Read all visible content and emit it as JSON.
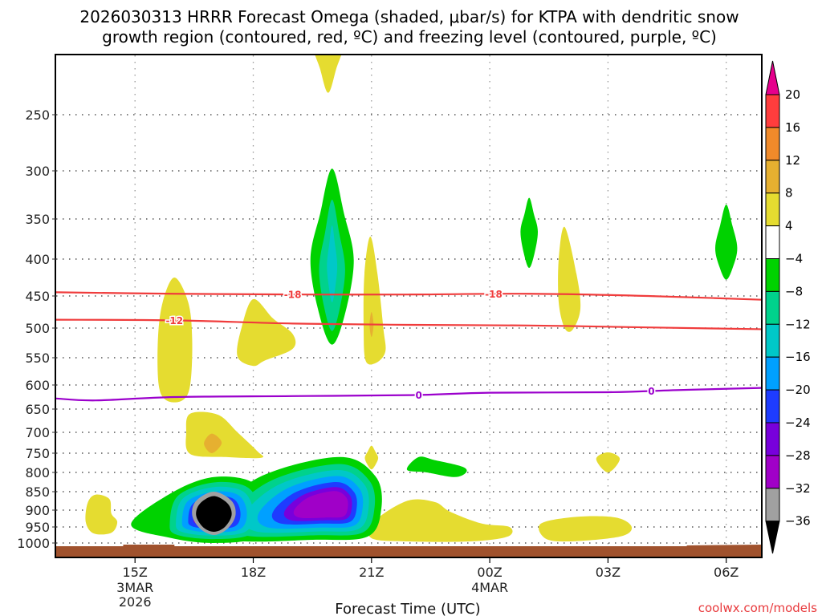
{
  "chart_data": {
    "type": "heatmap",
    "title": "2026030313 HRRR Forecast Omega (shaded, μbar/s) for KTPA with dendritic snow growth region (contoured, red, ºC) and freezing level (contoured, purple, ºC)",
    "title_lines": [
      "2026030313 HRRR Forecast Omega (shaded, μbar/s) for KTPA with dendritic snow",
      "growth region (contoured, red, ºC) and freezing level (contoured, purple, ºC)"
    ],
    "xlabel": "Forecast Time (UTC)",
    "ylabel": "",
    "x_unit": "hours since 2026-03-03 13Z",
    "xlim": [
      0,
      18.9
    ],
    "x_ticks": [
      {
        "hour": 2,
        "label": "15Z",
        "sub": [
          "3MAR",
          "2026"
        ]
      },
      {
        "hour": 5,
        "label": "18Z",
        "sub": []
      },
      {
        "hour": 8,
        "label": "21Z",
        "sub": []
      },
      {
        "hour": 11,
        "label": "00Z",
        "sub": [
          "4MAR"
        ]
      },
      {
        "hour": 14,
        "label": "03Z",
        "sub": []
      },
      {
        "hour": 17,
        "label": "06Z",
        "sub": []
      }
    ],
    "y_unit": "hPa",
    "ylim": [
      1025,
      200
    ],
    "y_ticks": [
      250,
      300,
      350,
      400,
      450,
      500,
      550,
      600,
      650,
      700,
      750,
      800,
      850,
      900,
      950,
      1000
    ],
    "grid": true,
    "colorbar": {
      "unit": "μbar/s",
      "levels": [
        20,
        16,
        12,
        8,
        4,
        -4,
        -8,
        -12,
        -16,
        -20,
        -24,
        -28,
        -32,
        -36
      ],
      "labels": [
        "20",
        "16",
        "12",
        "8",
        "4",
        "−4",
        "−8",
        "−12",
        "−16",
        "−20",
        "−24",
        "−28",
        "−32",
        "−36"
      ],
      "colors": [
        "#ff3d3d",
        "#f08a2a",
        "#e6b030",
        "#e5dc30",
        "#ffffff",
        "#00d200",
        "#00d28c",
        "#00c8c8",
        "#00a0ff",
        "#1e3cff",
        "#7800dc",
        "#a000c8",
        "#a0a0a0"
      ],
      "over_color": "#e6008c",
      "under_color": "#000000"
    },
    "omega_regions": [
      {
        "name": "yellow-top-2030",
        "value_range": [
          4,
          8
        ],
        "color": "#e5dc30",
        "center_hour": 6.85,
        "pressure_range": [
          200,
          235
        ]
      },
      {
        "name": "yellow-1600",
        "value_range": [
          4,
          8
        ],
        "color": "#e5dc30",
        "center_hour": 3.0,
        "pressure_range": [
          430,
          635
        ]
      },
      {
        "name": "yellow-1830",
        "value_range": [
          4,
          8
        ],
        "color": "#e5dc30",
        "center_hour": 5.0,
        "pressure_range": [
          455,
          565
        ]
      },
      {
        "name": "yellow-2100",
        "value_range": [
          4,
          8
        ],
        "color": "#e5dc30",
        "center_hour": 8.0,
        "pressure_range": [
          375,
          560
        ]
      },
      {
        "name": "yellow-0200",
        "value_range": [
          4,
          8
        ],
        "color": "#e5dc30",
        "center_hour": 13.0,
        "pressure_range": [
          360,
          505
        ]
      },
      {
        "name": "yellow-1630-700",
        "value_range": [
          4,
          12
        ],
        "color": "#e5dc30",
        "center_hour": 3.8,
        "pressure_range": [
          665,
          760
        ],
        "peak_range": [
          8,
          12
        ]
      },
      {
        "name": "yellow-2100-750",
        "value_range": [
          4,
          8
        ],
        "color": "#e5dc30",
        "center_hour": 8.0,
        "pressure_range": [
          730,
          790
        ]
      },
      {
        "name": "yellow-0300-760",
        "value_range": [
          4,
          8
        ],
        "color": "#e5dc30",
        "center_hour": 14.0,
        "pressure_range": [
          745,
          800
        ]
      },
      {
        "name": "yellow-1400-900",
        "value_range": [
          4,
          8
        ],
        "color": "#e5dc30",
        "center_hour": 1.1,
        "pressure_range": [
          855,
          970
        ]
      },
      {
        "name": "yellow-2300-950",
        "value_range": [
          4,
          8
        ],
        "color": "#e5dc30",
        "center_hour": 10.0,
        "pressure_range": [
          875,
          985
        ]
      },
      {
        "name": "yellow-0230-950",
        "value_range": [
          4,
          8
        ],
        "color": "#e5dc30",
        "center_hour": 13.9,
        "pressure_range": [
          920,
          990
        ]
      },
      {
        "name": "green-2000-upper",
        "value_range": [
          -16,
          -4
        ],
        "color": "#00d200",
        "center_hour": 7.0,
        "pressure_range": [
          300,
          525
        ],
        "peak_range": [
          -16,
          -12
        ]
      },
      {
        "name": "green-0100-350",
        "value_range": [
          -8,
          -4
        ],
        "color": "#00d200",
        "center_hour": 12.0,
        "pressure_range": [
          330,
          410
        ]
      },
      {
        "name": "green-0600-380",
        "value_range": [
          -8,
          -4
        ],
        "color": "#00d200",
        "center_hour": 17.0,
        "pressure_range": [
          340,
          425
        ]
      },
      {
        "name": "green-2230-780",
        "value_range": [
          -8,
          -4
        ],
        "color": "#00d200",
        "center_hour": 9.6,
        "pressure_range": [
          765,
          815
        ]
      },
      {
        "name": "low-level-max-1700",
        "value_range": [
          -40,
          -4
        ],
        "color": "#000000",
        "center_hour": 4.0,
        "pressure_range": [
          810,
          1000
        ],
        "peak_range": [
          -40,
          -36
        ]
      },
      {
        "name": "low-level-max-2000",
        "value_range": [
          -32,
          -4
        ],
        "color": "#a000c8",
        "center_hour": 7.0,
        "pressure_range": [
          770,
          1000
        ],
        "peak_range": [
          -32,
          -28
        ]
      }
    ],
    "contours": [
      {
        "name": "dgz-minus-18",
        "kind": "dendritic snow growth",
        "color": "#f03c3c",
        "level": -18,
        "label": "-18",
        "points_hour_hpa": [
          [
            0,
            445
          ],
          [
            3,
            447
          ],
          [
            6,
            448
          ],
          [
            9,
            448
          ],
          [
            12,
            447
          ],
          [
            15,
            450
          ],
          [
            18.9,
            458
          ]
        ],
        "label_hours": [
          6.0,
          11.1
        ]
      },
      {
        "name": "dgz-minus-12",
        "kind": "dendritic snow growth",
        "color": "#f03c3c",
        "level": -12,
        "label": "-12",
        "points_hour_hpa": [
          [
            0,
            487
          ],
          [
            3,
            488
          ],
          [
            6,
            493
          ],
          [
            9,
            495
          ],
          [
            12,
            496
          ],
          [
            15,
            499
          ],
          [
            18.9,
            503
          ]
        ],
        "label_hours": [
          3.0
        ]
      },
      {
        "name": "freezing-level-0",
        "kind": "freezing level",
        "color": "#9b00cc",
        "level": 0,
        "label": "0",
        "points_hour_hpa": [
          [
            0,
            628
          ],
          [
            1,
            632
          ],
          [
            3,
            625
          ],
          [
            6,
            623
          ],
          [
            9,
            621
          ],
          [
            11,
            616
          ],
          [
            14,
            615
          ],
          [
            16,
            610
          ],
          [
            18.9,
            604
          ]
        ],
        "label_hours": [
          9.2,
          15.1
        ]
      }
    ],
    "terrain": {
      "color": "#a0522d",
      "label": "surface"
    }
  },
  "credit": "coolwx.com/models"
}
